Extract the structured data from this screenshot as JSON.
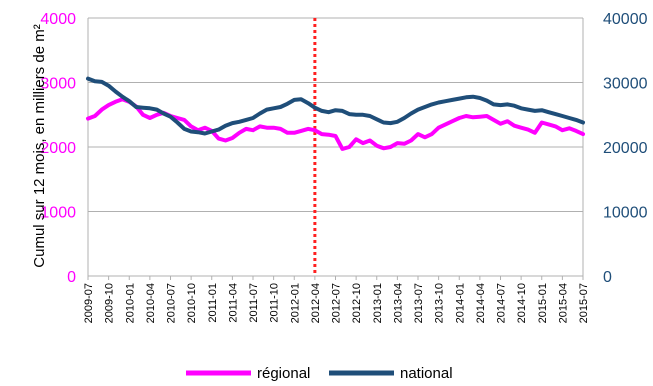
{
  "chart_data": {
    "type": "line",
    "ylabel": "Cumul sur 12 mois, en milliers de m²",
    "left_axis": {
      "min": 0,
      "max": 4000,
      "ticks": [
        "0",
        "1000",
        "2000",
        "3000",
        "4000"
      ],
      "color": "#ff00ff"
    },
    "right_axis": {
      "min": 0,
      "max": 40000,
      "ticks": [
        "0",
        "10000",
        "20000",
        "30000",
        "40000"
      ],
      "color": "#1f4e79"
    },
    "grid": true,
    "x_range": [
      "2009-07",
      "2015-07"
    ],
    "x_tick_labels": [
      "2009-07",
      "2009-10",
      "2010-01",
      "2010-04",
      "2010-07",
      "2010-10",
      "2011-01",
      "2011-04",
      "2011-07",
      "2011-10",
      "2012-01",
      "2012-04",
      "2012-07",
      "2012-10",
      "2013-01",
      "2013-04",
      "2013-07",
      "2013-10",
      "2014-01",
      "2014-04",
      "2014-07",
      "2014-10",
      "2015-01",
      "2015-04",
      "2015-07"
    ],
    "marker_line": {
      "x": "2012-04",
      "color": "#ff2020",
      "style": "dotted"
    },
    "series": [
      {
        "name": "régional",
        "axis": "left",
        "color": "#ff00ff",
        "points": [
          [
            "2009-07",
            2440
          ],
          [
            "2009-08",
            2480
          ],
          [
            "2009-09",
            2580
          ],
          [
            "2009-10",
            2650
          ],
          [
            "2009-11",
            2700
          ],
          [
            "2009-12",
            2740
          ],
          [
            "2010-01",
            2700
          ],
          [
            "2010-02",
            2630
          ],
          [
            "2010-03",
            2500
          ],
          [
            "2010-04",
            2450
          ],
          [
            "2010-05",
            2500
          ],
          [
            "2010-06",
            2530
          ],
          [
            "2010-07",
            2480
          ],
          [
            "2010-08",
            2450
          ],
          [
            "2010-09",
            2420
          ],
          [
            "2010-10",
            2320
          ],
          [
            "2010-11",
            2260
          ],
          [
            "2010-12",
            2300
          ],
          [
            "2011-01",
            2250
          ],
          [
            "2011-02",
            2130
          ],
          [
            "2011-03",
            2100
          ],
          [
            "2011-04",
            2140
          ],
          [
            "2011-05",
            2220
          ],
          [
            "2011-06",
            2280
          ],
          [
            "2011-07",
            2260
          ],
          [
            "2011-08",
            2320
          ],
          [
            "2011-09",
            2300
          ],
          [
            "2011-10",
            2300
          ],
          [
            "2011-11",
            2280
          ],
          [
            "2011-12",
            2220
          ],
          [
            "2012-01",
            2220
          ],
          [
            "2012-02",
            2250
          ],
          [
            "2012-03",
            2280
          ],
          [
            "2012-04",
            2260
          ],
          [
            "2012-05",
            2200
          ],
          [
            "2012-06",
            2190
          ],
          [
            "2012-07",
            2170
          ],
          [
            "2012-08",
            1970
          ],
          [
            "2012-09",
            2000
          ],
          [
            "2012-10",
            2120
          ],
          [
            "2012-11",
            2060
          ],
          [
            "2012-12",
            2100
          ],
          [
            "2013-01",
            2020
          ],
          [
            "2013-02",
            1980
          ],
          [
            "2013-03",
            2000
          ],
          [
            "2013-04",
            2060
          ],
          [
            "2013-05",
            2050
          ],
          [
            "2013-06",
            2100
          ],
          [
            "2013-07",
            2200
          ],
          [
            "2013-08",
            2150
          ],
          [
            "2013-09",
            2200
          ],
          [
            "2013-10",
            2300
          ],
          [
            "2013-11",
            2350
          ],
          [
            "2013-12",
            2400
          ],
          [
            "2014-01",
            2450
          ],
          [
            "2014-02",
            2480
          ],
          [
            "2014-03",
            2460
          ],
          [
            "2014-04",
            2470
          ],
          [
            "2014-05",
            2480
          ],
          [
            "2014-06",
            2420
          ],
          [
            "2014-07",
            2360
          ],
          [
            "2014-08",
            2400
          ],
          [
            "2014-09",
            2330
          ],
          [
            "2014-10",
            2300
          ],
          [
            "2014-11",
            2270
          ],
          [
            "2014-12",
            2220
          ],
          [
            "2015-01",
            2380
          ],
          [
            "2015-02",
            2350
          ],
          [
            "2015-03",
            2320
          ],
          [
            "2015-04",
            2260
          ],
          [
            "2015-05",
            2290
          ],
          [
            "2015-06",
            2250
          ],
          [
            "2015-07",
            2200
          ]
        ]
      },
      {
        "name": "national",
        "axis": "right",
        "color": "#1f4e79",
        "points": [
          [
            "2009-07",
            30600
          ],
          [
            "2009-08",
            30200
          ],
          [
            "2009-09",
            30100
          ],
          [
            "2009-10",
            29500
          ],
          [
            "2009-11",
            28600
          ],
          [
            "2009-12",
            27800
          ],
          [
            "2010-01",
            27100
          ],
          [
            "2010-02",
            26200
          ],
          [
            "2010-03",
            26100
          ],
          [
            "2010-04",
            26000
          ],
          [
            "2010-05",
            25800
          ],
          [
            "2010-06",
            25200
          ],
          [
            "2010-07",
            24700
          ],
          [
            "2010-08",
            23800
          ],
          [
            "2010-09",
            22800
          ],
          [
            "2010-10",
            22400
          ],
          [
            "2010-11",
            22300
          ],
          [
            "2010-12",
            22100
          ],
          [
            "2011-01",
            22400
          ],
          [
            "2011-02",
            22700
          ],
          [
            "2011-03",
            23300
          ],
          [
            "2011-04",
            23700
          ],
          [
            "2011-05",
            23900
          ],
          [
            "2011-06",
            24200
          ],
          [
            "2011-07",
            24500
          ],
          [
            "2011-08",
            25200
          ],
          [
            "2011-09",
            25800
          ],
          [
            "2011-10",
            26000
          ],
          [
            "2011-11",
            26200
          ],
          [
            "2011-12",
            26700
          ],
          [
            "2012-01",
            27300
          ],
          [
            "2012-02",
            27400
          ],
          [
            "2012-03",
            26800
          ],
          [
            "2012-04",
            26100
          ],
          [
            "2012-05",
            25600
          ],
          [
            "2012-06",
            25400
          ],
          [
            "2012-07",
            25700
          ],
          [
            "2012-08",
            25600
          ],
          [
            "2012-09",
            25100
          ],
          [
            "2012-10",
            25000
          ],
          [
            "2012-11",
            25000
          ],
          [
            "2012-12",
            24800
          ],
          [
            "2013-01",
            24300
          ],
          [
            "2013-02",
            23800
          ],
          [
            "2013-03",
            23700
          ],
          [
            "2013-04",
            23900
          ],
          [
            "2013-05",
            24500
          ],
          [
            "2013-06",
            25200
          ],
          [
            "2013-07",
            25800
          ],
          [
            "2013-08",
            26200
          ],
          [
            "2013-09",
            26600
          ],
          [
            "2013-10",
            26900
          ],
          [
            "2013-11",
            27100
          ],
          [
            "2013-12",
            27300
          ],
          [
            "2014-01",
            27500
          ],
          [
            "2014-02",
            27700
          ],
          [
            "2014-03",
            27800
          ],
          [
            "2014-04",
            27600
          ],
          [
            "2014-05",
            27200
          ],
          [
            "2014-06",
            26600
          ],
          [
            "2014-07",
            26500
          ],
          [
            "2014-08",
            26600
          ],
          [
            "2014-09",
            26400
          ],
          [
            "2014-10",
            26000
          ],
          [
            "2014-11",
            25800
          ],
          [
            "2014-12",
            25600
          ],
          [
            "2015-01",
            25700
          ],
          [
            "2015-02",
            25400
          ],
          [
            "2015-03",
            25100
          ],
          [
            "2015-04",
            24800
          ],
          [
            "2015-05",
            24500
          ],
          [
            "2015-06",
            24200
          ],
          [
            "2015-07",
            23800
          ]
        ]
      }
    ],
    "legend": {
      "position": "bottom",
      "entries": [
        "régional",
        "national"
      ]
    }
  }
}
